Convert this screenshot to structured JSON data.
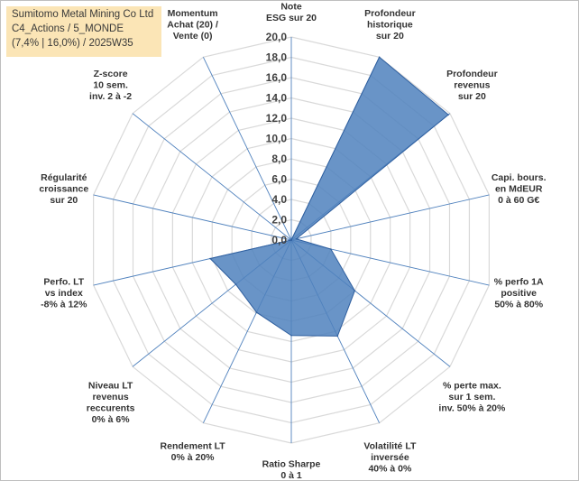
{
  "title": {
    "line1": "Sumitomo Metal Mining Co Ltd",
    "line2": "C4_Actions / 5_MONDE",
    "line3": "(7,4% | 16,0%) / 2025W35"
  },
  "colors": {
    "fill": "#4f81bd",
    "stroke": "#2f5f9f",
    "grid": "#d9d9d9",
    "spoke": "#4f81bd",
    "title_bg": "#fbe5b6"
  },
  "chart_data": {
    "type": "radar",
    "rmin": 0,
    "rmax": 20,
    "tick_step": 2,
    "tick_labels": [
      "0,0",
      "2,0",
      "4,0",
      "6,0",
      "8,0",
      "10,0",
      "12,0",
      "14,0",
      "16,0",
      "18,0",
      "20,0"
    ],
    "axes": [
      {
        "label": [
          "Note",
          "ESG sur 20"
        ],
        "value": 0.0
      },
      {
        "label": [
          "Profondeur",
          "historique",
          "sur 20"
        ],
        "value": 20.0
      },
      {
        "label": [
          "Profondeur",
          "revenus",
          "sur 20"
        ],
        "value": 19.8
      },
      {
        "label": [
          "Capi. bours.",
          "en MdEUR",
          "0 à 60 G€"
        ],
        "value": 0.5
      },
      {
        "label": [
          "% perfo 1A",
          "positive",
          "50% à 80%"
        ],
        "value": 4.0
      },
      {
        "label": [
          "% perte max.",
          "sur 1 sem.",
          "inv. 50% à 20%"
        ],
        "value": 8.0
      },
      {
        "label": [
          "Volatilité LT",
          "inversée",
          "40% à 0%"
        ],
        "value": 10.5
      },
      {
        "label": [
          "Ratio Sharpe",
          "0 à 1"
        ],
        "value": 9.4
      },
      {
        "label": [
          "Rendement LT",
          "0% à 20%"
        ],
        "value": 7.9
      },
      {
        "label": [
          "Niveau LT",
          "revenus",
          "reccurents",
          "0% à 6%"
        ],
        "value": 7.0
      },
      {
        "label": [
          "Perfo. LT",
          "vs index",
          "-8% à 12%"
        ],
        "value": 8.2
      },
      {
        "label": [
          "Régularité",
          "croissance",
          "sur 20"
        ],
        "value": 0.0
      },
      {
        "label": [
          "Z-score",
          "10 sem.",
          "inv. 2 à -2"
        ],
        "value": 0.0
      },
      {
        "label": [
          "Momentum",
          "Achat (20) /",
          "Vente (0)"
        ],
        "value": 0.0
      }
    ]
  }
}
